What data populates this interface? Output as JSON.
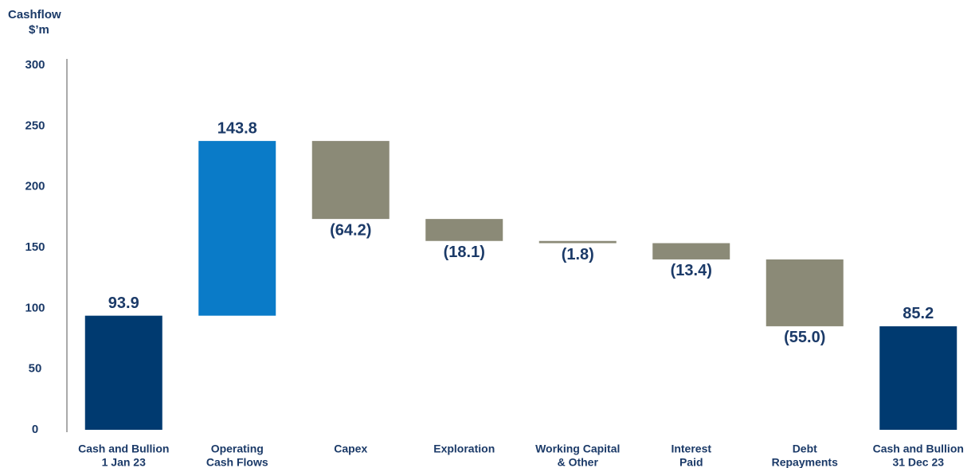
{
  "chart_data": {
    "type": "waterfall",
    "title": "Cashflow",
    "ylabel": "$’m",
    "categories": [
      [
        "Cash and Bullion",
        "1 Jan 23"
      ],
      [
        "Operating",
        "Cash Flows"
      ],
      [
        "Capex"
      ],
      [
        "Exploration"
      ],
      [
        "Working Capital",
        "& Other"
      ],
      [
        "Interest",
        "Paid"
      ],
      [
        "Debt",
        "Repayments"
      ],
      [
        "Cash and Bullion",
        "31 Dec 23"
      ]
    ],
    "measures": [
      "absolute",
      "relative",
      "relative",
      "relative",
      "relative",
      "relative",
      "relative",
      "total"
    ],
    "values": [
      93.9,
      143.8,
      -64.2,
      -18.1,
      -1.8,
      -13.4,
      -55.0,
      85.2
    ],
    "value_labels": [
      "93.9",
      "143.8",
      "(64.2)",
      "(18.1)",
      "(1.8)",
      "(13.4)",
      "(55.0)",
      "85.2"
    ],
    "colors": [
      "#003a70",
      "#0a7bc8",
      "#8b8a77",
      "#8b8a77",
      "#8b8a77",
      "#8b8a77",
      "#8b8a77",
      "#003a70"
    ],
    "ylim": [
      0,
      300
    ],
    "yticks": [
      0,
      50,
      100,
      150,
      200,
      250,
      300
    ],
    "grid": false
  }
}
